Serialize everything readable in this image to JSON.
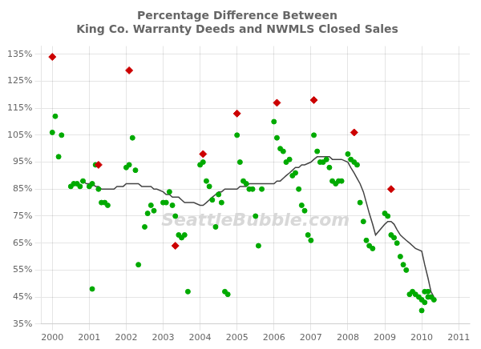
{
  "chart_data": {
    "type": "scatter",
    "title": "Percentage Difference Between\nKing Co. Warranty Deeds and NWMLS Closed Sales",
    "annotations": [
      {
        "text": "SeattleBubble.com",
        "color": "#d8d8d8"
      }
    ],
    "xlim": [
      1999.7,
      2011.3
    ],
    "xticks": [
      2000,
      2001,
      2002,
      2003,
      2004,
      2005,
      2006,
      2007,
      2008,
      2009,
      2010,
      2011
    ],
    "ylim": [
      0.35,
      1.38
    ],
    "yticks": [
      {
        "value": 0.35,
        "label": "35%"
      },
      {
        "value": 0.45,
        "label": "45%"
      },
      {
        "value": 0.55,
        "label": "55%"
      },
      {
        "value": 0.65,
        "label": "65%"
      },
      {
        "value": 0.75,
        "label": "75%"
      },
      {
        "value": 0.85,
        "label": "85%"
      },
      {
        "value": 0.95,
        "label": "95%"
      },
      {
        "value": 1.05,
        "label": "105%"
      },
      {
        "value": 1.15,
        "label": "115%"
      },
      {
        "value": 1.25,
        "label": "125%"
      },
      {
        "value": 1.35,
        "label": "135%"
      }
    ],
    "grid": true,
    "series": [
      {
        "type": "line",
        "color": "#444444",
        "marker": "none",
        "line_style": "solid",
        "x": [
          2000.75,
          2000.83,
          2000.92,
          2001.0,
          2001.08,
          2001.17,
          2001.25,
          2001.33,
          2001.42,
          2001.5,
          2001.58,
          2001.67,
          2001.75,
          2001.83,
          2001.92,
          2002.0,
          2002.08,
          2002.17,
          2002.25,
          2002.33,
          2002.42,
          2002.5,
          2002.58,
          2002.67,
          2002.75,
          2002.83,
          2003.0,
          2003.08,
          2003.17,
          2003.25,
          2003.33,
          2003.42,
          2003.5,
          2003.58,
          2003.67,
          2003.75,
          2003.83,
          2004.0,
          2004.08,
          2004.17,
          2004.25,
          2004.33,
          2004.42,
          2004.5,
          2004.58,
          2004.67,
          2004.75,
          2004.83,
          2005.0,
          2005.08,
          2005.17,
          2005.25,
          2005.33,
          2005.42,
          2005.5,
          2005.58,
          2005.67,
          2005.75,
          2005.83,
          2006.0,
          2006.08,
          2006.17,
          2006.25,
          2006.33,
          2006.42,
          2006.5,
          2006.58,
          2006.67,
          2006.75,
          2006.83,
          2007.0,
          2007.08,
          2007.17,
          2007.25,
          2007.33,
          2007.42,
          2007.5,
          2007.58,
          2007.67,
          2007.75,
          2007.83,
          2008.0,
          2008.08,
          2008.17,
          2008.25,
          2008.33,
          2008.42,
          2008.5,
          2008.58,
          2008.67,
          2008.75,
          2009.0,
          2009.08,
          2009.17,
          2009.25,
          2009.33,
          2009.42,
          2009.5,
          2009.58,
          2009.67,
          2009.75,
          2009.83,
          2010.0,
          2010.08,
          2010.17,
          2010.25,
          2010.33
        ],
        "values": [
          0.88,
          0.88,
          0.87,
          0.87,
          0.87,
          0.86,
          0.86,
          0.85,
          0.85,
          0.85,
          0.85,
          0.85,
          0.86,
          0.86,
          0.86,
          0.87,
          0.87,
          0.87,
          0.87,
          0.87,
          0.86,
          0.86,
          0.86,
          0.86,
          0.85,
          0.85,
          0.84,
          0.83,
          0.83,
          0.82,
          0.82,
          0.82,
          0.81,
          0.8,
          0.8,
          0.8,
          0.8,
          0.79,
          0.79,
          0.8,
          0.81,
          0.82,
          0.83,
          0.84,
          0.84,
          0.85,
          0.85,
          0.85,
          0.85,
          0.86,
          0.86,
          0.86,
          0.87,
          0.87,
          0.87,
          0.87,
          0.87,
          0.87,
          0.87,
          0.87,
          0.88,
          0.88,
          0.89,
          0.9,
          0.91,
          0.92,
          0.93,
          0.93,
          0.94,
          0.94,
          0.95,
          0.96,
          0.97,
          0.97,
          0.97,
          0.97,
          0.97,
          0.96,
          0.96,
          0.96,
          0.96,
          0.95,
          0.93,
          0.91,
          0.89,
          0.87,
          0.84,
          0.8,
          0.76,
          0.72,
          0.68,
          0.72,
          0.73,
          0.73,
          0.72,
          0.7,
          0.68,
          0.67,
          0.66,
          0.65,
          0.64,
          0.63,
          0.62,
          0.57,
          0.52,
          0.47,
          0.45
        ]
      },
      {
        "type": "scatter",
        "color": "#00aa00",
        "marker": "circle",
        "x": [
          2000.0,
          2000.08,
          2000.17,
          2000.25,
          2000.5,
          2000.58,
          2000.67,
          2000.75,
          2000.83,
          2001.0,
          2001.08,
          2001.17,
          2001.25,
          2001.33,
          2001.42,
          2001.5,
          2001.08,
          2002.0,
          2002.08,
          2002.17,
          2002.25,
          2002.33,
          2002.5,
          2002.58,
          2002.67,
          2002.75,
          2003.0,
          2003.08,
          2003.17,
          2003.25,
          2003.33,
          2003.42,
          2003.5,
          2003.58,
          2003.67,
          2004.0,
          2004.08,
          2004.17,
          2004.25,
          2004.33,
          2004.42,
          2004.5,
          2004.58,
          2004.67,
          2004.75,
          2005.0,
          2005.08,
          2005.17,
          2005.25,
          2005.33,
          2005.42,
          2005.5,
          2005.58,
          2005.67,
          2006.0,
          2006.08,
          2006.17,
          2006.25,
          2006.33,
          2006.42,
          2006.5,
          2006.58,
          2006.67,
          2006.75,
          2006.83,
          2006.92,
          2007.0,
          2007.08,
          2007.17,
          2007.25,
          2007.33,
          2007.42,
          2007.5,
          2007.58,
          2007.67,
          2007.75,
          2007.83,
          2008.0,
          2008.08,
          2008.17,
          2008.25,
          2008.33,
          2008.42,
          2008.5,
          2008.58,
          2008.67,
          2009.0,
          2009.08,
          2009.17,
          2009.25,
          2009.33,
          2009.42,
          2009.5,
          2009.58,
          2009.67,
          2009.75,
          2009.83,
          2009.92,
          2010.0,
          2010.08,
          2010.17,
          2010.25,
          2010.33,
          2010.0,
          2010.08,
          2010.17
        ],
        "values": [
          1.06,
          1.12,
          0.97,
          1.05,
          0.86,
          0.87,
          0.87,
          0.86,
          0.88,
          0.86,
          0.87,
          0.94,
          0.85,
          0.8,
          0.8,
          0.79,
          0.48,
          0.93,
          0.94,
          1.04,
          0.92,
          0.57,
          0.71,
          0.76,
          0.79,
          0.77,
          0.8,
          0.8,
          0.84,
          0.79,
          0.75,
          0.68,
          0.67,
          0.68,
          0.47,
          0.94,
          0.95,
          0.88,
          0.86,
          0.81,
          0.71,
          0.83,
          0.8,
          0.47,
          0.46,
          1.05,
          0.95,
          0.88,
          0.87,
          0.85,
          0.85,
          0.75,
          0.64,
          0.85,
          1.1,
          1.04,
          1.0,
          0.99,
          0.95,
          0.96,
          0.9,
          0.91,
          0.85,
          0.79,
          0.77,
          0.68,
          0.66,
          1.05,
          0.99,
          0.95,
          0.95,
          0.96,
          0.93,
          0.88,
          0.87,
          0.88,
          0.88,
          0.98,
          0.96,
          0.95,
          0.94,
          0.8,
          0.73,
          0.66,
          0.64,
          0.63,
          0.76,
          0.75,
          0.68,
          0.67,
          0.65,
          0.6,
          0.57,
          0.55,
          0.46,
          0.47,
          0.46,
          0.45,
          0.44,
          0.43,
          0.47,
          0.45,
          0.44,
          0.4,
          0.47,
          0.45
        ]
      },
      {
        "type": "scatter",
        "color": "#cc0000",
        "marker": "diamond",
        "x": [
          2000.0,
          2001.25,
          2002.08,
          2003.33,
          2004.08,
          2005.0,
          2006.08,
          2007.08,
          2008.17,
          2009.17
        ],
        "values": [
          1.34,
          0.94,
          1.29,
          0.64,
          0.98,
          1.13,
          1.17,
          1.18,
          1.06,
          0.85
        ]
      }
    ]
  }
}
